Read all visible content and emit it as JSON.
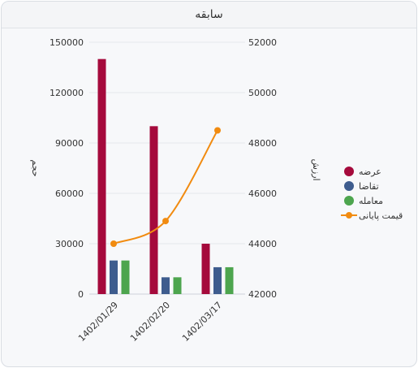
{
  "panel": {
    "title": "سابقه"
  },
  "chart_data": {
    "type": "bar",
    "categories": [
      "1402/01/29",
      "1402/02/20",
      "1402/03/17"
    ],
    "series": [
      {
        "name": "عرضه",
        "type": "bar",
        "axis": "left",
        "color": "#a50a3c",
        "values": [
          140000,
          100000,
          30000
        ]
      },
      {
        "name": "تقاضا",
        "type": "bar",
        "axis": "left",
        "color": "#3e5c8e",
        "values": [
          20000,
          10000,
          16000
        ]
      },
      {
        "name": "معامله",
        "type": "bar",
        "axis": "left",
        "color": "#4da54e",
        "values": [
          20000,
          10000,
          16000
        ]
      },
      {
        "name": "قیمت پایانی",
        "type": "line",
        "axis": "right",
        "color": "#f18b10",
        "values": [
          44000,
          44900,
          48500
        ]
      }
    ],
    "y_left": {
      "label": "حجم",
      "ylim": [
        0,
        150000
      ],
      "ticks": [
        0,
        30000,
        60000,
        90000,
        120000,
        150000
      ]
    },
    "y_right": {
      "label": "ارزش",
      "ylim": [
        42000,
        52000
      ],
      "ticks": [
        42000,
        44000,
        46000,
        48000,
        50000,
        52000
      ]
    },
    "grid": true,
    "legend": "right"
  }
}
